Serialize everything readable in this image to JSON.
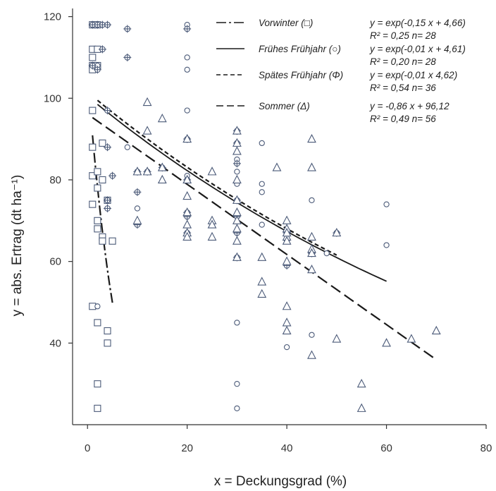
{
  "chart_data": {
    "type": "scatter",
    "xlabel": "x = Deckungsgrad (%)",
    "ylabel": "y = abs. Ertrag (dt ha⁻¹)",
    "xlim": [
      -3,
      80
    ],
    "ylim": [
      20,
      122
    ],
    "x_ticks": [
      0,
      20,
      40,
      60,
      80
    ],
    "y_ticks": [
      40,
      60,
      80,
      100,
      120
    ],
    "grid": false,
    "legend_position": "top-right",
    "series": [
      {
        "name": "Vorwinter (□)",
        "marker": "square",
        "equation": "y = exp(-0,15 x + 4,66)",
        "stats": "R² = 0,25   n= 28",
        "line_style": "dash-dot",
        "fit_range": [
          1,
          5
        ],
        "points": [
          [
            1,
            118
          ],
          [
            1,
            112
          ],
          [
            1,
            110
          ],
          [
            1,
            108
          ],
          [
            1,
            107
          ],
          [
            1,
            97
          ],
          [
            1,
            88
          ],
          [
            1,
            81
          ],
          [
            1,
            74
          ],
          [
            1,
            49
          ],
          [
            2,
            118
          ],
          [
            2,
            112
          ],
          [
            2,
            108
          ],
          [
            2,
            82
          ],
          [
            2,
            78
          ],
          [
            2,
            70
          ],
          [
            2,
            68
          ],
          [
            2,
            45
          ],
          [
            2,
            30
          ],
          [
            2,
            24
          ],
          [
            3,
            89
          ],
          [
            3,
            80
          ],
          [
            3,
            66
          ],
          [
            3,
            65
          ],
          [
            4,
            75
          ],
          [
            4,
            43
          ],
          [
            4,
            40
          ],
          [
            5,
            65
          ]
        ]
      },
      {
        "name": "Frühes Frühjahr (○)",
        "marker": "circle",
        "equation": "y = exp(-0,01 x + 4,61)",
        "stats": "R² = 0,20   n= 28",
        "line_style": "solid",
        "fit_range": [
          2,
          60
        ],
        "points": [
          [
            2,
            108
          ],
          [
            2,
            49
          ],
          [
            3,
            112
          ],
          [
            8,
            88
          ],
          [
            10,
            73
          ],
          [
            20,
            118
          ],
          [
            20,
            110
          ],
          [
            20,
            107
          ],
          [
            20,
            97
          ],
          [
            20,
            81
          ],
          [
            30,
            89
          ],
          [
            30,
            85
          ],
          [
            30,
            82
          ],
          [
            30,
            79
          ],
          [
            30,
            45
          ],
          [
            30,
            30
          ],
          [
            30,
            24
          ],
          [
            35,
            89
          ],
          [
            35,
            79
          ],
          [
            35,
            77
          ],
          [
            35,
            69
          ],
          [
            40,
            65
          ],
          [
            40,
            39
          ],
          [
            45,
            75
          ],
          [
            45,
            42
          ],
          [
            48,
            62
          ],
          [
            60,
            74
          ],
          [
            60,
            64
          ]
        ]
      },
      {
        "name": "Spätes Frühjahr (Φ)",
        "marker": "circle-plus",
        "equation": "y = exp(-0,01 x 4,62)",
        "stats": "R² = 0,54   n= 36",
        "line_style": "short-dash",
        "fit_range": [
          2,
          50
        ],
        "points": [
          [
            1,
            118
          ],
          [
            1,
            108
          ],
          [
            2,
            118
          ],
          [
            2,
            107
          ],
          [
            3,
            118
          ],
          [
            3,
            112
          ],
          [
            4,
            118
          ],
          [
            4,
            97
          ],
          [
            4,
            88
          ],
          [
            4,
            75
          ],
          [
            4,
            73
          ],
          [
            5,
            81
          ],
          [
            8,
            117
          ],
          [
            8,
            110
          ],
          [
            10,
            82
          ],
          [
            10,
            77
          ],
          [
            10,
            69
          ],
          [
            12,
            82
          ],
          [
            15,
            83
          ],
          [
            20,
            117
          ],
          [
            20,
            90
          ],
          [
            20,
            80
          ],
          [
            20,
            72
          ],
          [
            20,
            71
          ],
          [
            20,
            67
          ],
          [
            30,
            92
          ],
          [
            30,
            89
          ],
          [
            30,
            84
          ],
          [
            30,
            75
          ],
          [
            30,
            71
          ],
          [
            30,
            67
          ],
          [
            30,
            61
          ],
          [
            40,
            67
          ],
          [
            40,
            59
          ],
          [
            45,
            62
          ],
          [
            50,
            67
          ]
        ]
      },
      {
        "name": "Sommer (Δ)",
        "marker": "triangle",
        "equation": "y = -0,86 x + 96,12",
        "stats": "R² = 0,49   n= 56",
        "line_style": "long-dash",
        "fit_range": [
          1,
          70
        ],
        "points": [
          [
            10,
            82
          ],
          [
            10,
            70
          ],
          [
            12,
            92
          ],
          [
            12,
            82
          ],
          [
            12,
            99
          ],
          [
            15,
            95
          ],
          [
            15,
            83
          ],
          [
            15,
            80
          ],
          [
            20,
            90
          ],
          [
            20,
            80
          ],
          [
            20,
            76
          ],
          [
            20,
            72
          ],
          [
            20,
            69
          ],
          [
            20,
            67
          ],
          [
            25,
            82
          ],
          [
            25,
            70
          ],
          [
            25,
            66
          ],
          [
            30,
            92
          ],
          [
            30,
            89
          ],
          [
            30,
            87
          ],
          [
            30,
            80
          ],
          [
            30,
            75
          ],
          [
            30,
            72
          ],
          [
            30,
            68
          ],
          [
            30,
            65
          ],
          [
            30,
            61
          ],
          [
            35,
            61
          ],
          [
            35,
            55
          ],
          [
            35,
            52
          ],
          [
            38,
            83
          ],
          [
            40,
            70
          ],
          [
            40,
            68
          ],
          [
            40,
            66
          ],
          [
            40,
            65
          ],
          [
            40,
            60
          ],
          [
            40,
            49
          ],
          [
            40,
            45
          ],
          [
            40,
            43
          ],
          [
            45,
            90
          ],
          [
            45,
            83
          ],
          [
            45,
            66
          ],
          [
            45,
            63
          ],
          [
            45,
            58
          ],
          [
            45,
            37
          ],
          [
            50,
            67
          ],
          [
            50,
            41
          ],
          [
            55,
            30
          ],
          [
            55,
            24
          ],
          [
            60,
            40
          ],
          [
            65,
            41
          ],
          [
            70,
            43
          ],
          [
            30,
            70
          ],
          [
            45,
            62
          ],
          [
            40,
            67
          ],
          [
            20,
            66
          ],
          [
            25,
            69
          ]
        ]
      }
    ]
  }
}
